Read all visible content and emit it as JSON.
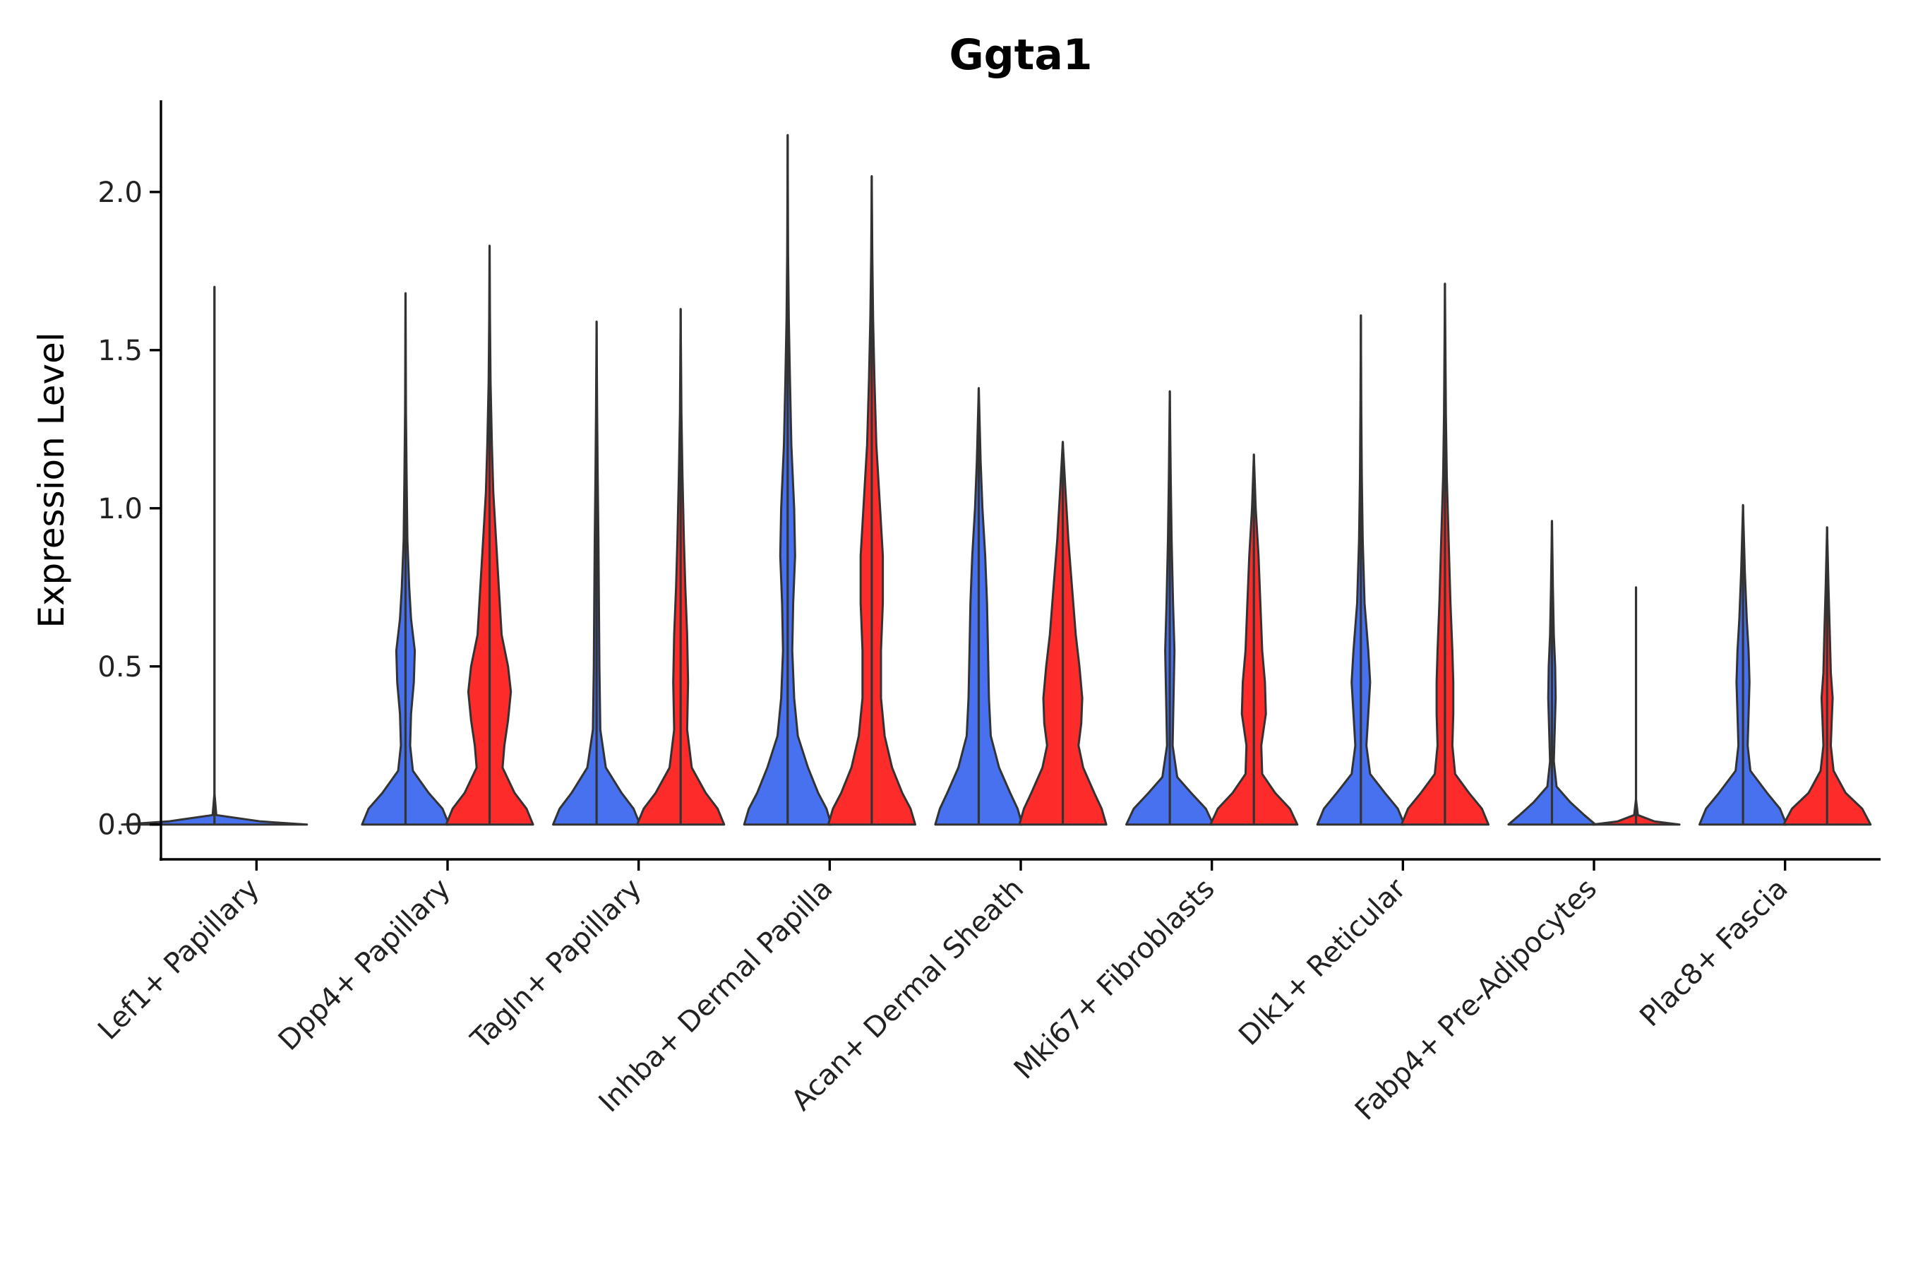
{
  "chart_data": {
    "type": "violin",
    "title": "Ggta1",
    "xlabel": "",
    "ylabel": "Expression Level",
    "ylim": [
      -0.11,
      2.29
    ],
    "yticks": [
      {
        "value": 0.0,
        "label": "0.0"
      },
      {
        "value": 0.5,
        "label": "0.5"
      },
      {
        "value": 1.0,
        "label": "1.0"
      },
      {
        "value": 1.5,
        "label": "1.5"
      },
      {
        "value": 2.0,
        "label": "2.0"
      }
    ],
    "colors": {
      "group_1": "#4771ee",
      "group_2": "#fe2b2b",
      "outline": "#333333"
    },
    "categories": [
      "Lef1+ Papillary",
      "Dpp4+ Papillary",
      "Tagln+ Papillary",
      "Inhba+ Dermal Papilla",
      "Acan+ Dermal Sheath",
      "Mki67+ Fibroblasts",
      "Dlk1+ Reticular",
      "Fabp4+ Pre-Adipocytes",
      "Plac8+ Fascia"
    ],
    "violins": [
      {
        "category": "Lef1+ Papillary",
        "group": 1,
        "max": 1.7,
        "density": [
          [
            0,
            1.0
          ],
          [
            0.01,
            0.5
          ],
          [
            0.03,
            0.02
          ],
          [
            0.1,
            0.0
          ],
          [
            1.7,
            0.0
          ]
        ]
      },
      {
        "category": "Dpp4+ Papillary",
        "group": 1,
        "max": 1.68,
        "density": [
          [
            0,
            0.47
          ],
          [
            0.05,
            0.4
          ],
          [
            0.1,
            0.25
          ],
          [
            0.17,
            0.08
          ],
          [
            0.25,
            0.05
          ],
          [
            0.35,
            0.06
          ],
          [
            0.45,
            0.09
          ],
          [
            0.55,
            0.1
          ],
          [
            0.65,
            0.06
          ],
          [
            0.75,
            0.04
          ],
          [
            0.9,
            0.02
          ],
          [
            1.1,
            0.012
          ],
          [
            1.3,
            0.005
          ],
          [
            1.68,
            0.0
          ]
        ]
      },
      {
        "category": "Dpp4+ Papillary",
        "group": 2,
        "max": 1.83,
        "density": [
          [
            0,
            0.47
          ],
          [
            0.05,
            0.4
          ],
          [
            0.1,
            0.27
          ],
          [
            0.18,
            0.14
          ],
          [
            0.25,
            0.16
          ],
          [
            0.33,
            0.2
          ],
          [
            0.42,
            0.23
          ],
          [
            0.5,
            0.2
          ],
          [
            0.6,
            0.13
          ],
          [
            0.75,
            0.1
          ],
          [
            0.9,
            0.07
          ],
          [
            1.05,
            0.04
          ],
          [
            1.2,
            0.025
          ],
          [
            1.4,
            0.01
          ],
          [
            1.6,
            0.004
          ],
          [
            1.83,
            0.0
          ]
        ]
      },
      {
        "category": "Tagln+ Papillary",
        "group": 1,
        "max": 1.59,
        "density": [
          [
            0,
            0.47
          ],
          [
            0.05,
            0.4
          ],
          [
            0.1,
            0.27
          ],
          [
            0.18,
            0.1
          ],
          [
            0.3,
            0.04
          ],
          [
            0.5,
            0.03
          ],
          [
            0.7,
            0.025
          ],
          [
            0.9,
            0.02
          ],
          [
            1.1,
            0.012
          ],
          [
            1.3,
            0.006
          ],
          [
            1.59,
            0.0
          ]
        ]
      },
      {
        "category": "Tagln+ Papillary",
        "group": 2,
        "max": 1.63,
        "density": [
          [
            0,
            0.47
          ],
          [
            0.05,
            0.4
          ],
          [
            0.1,
            0.27
          ],
          [
            0.18,
            0.12
          ],
          [
            0.3,
            0.07
          ],
          [
            0.45,
            0.08
          ],
          [
            0.6,
            0.07
          ],
          [
            0.75,
            0.05
          ],
          [
            0.9,
            0.035
          ],
          [
            1.1,
            0.02
          ],
          [
            1.3,
            0.008
          ],
          [
            1.63,
            0.0
          ]
        ]
      },
      {
        "category": "Inhba+ Dermal Papilla",
        "group": 1,
        "max": 2.18,
        "density": [
          [
            0,
            0.47
          ],
          [
            0.05,
            0.42
          ],
          [
            0.1,
            0.33
          ],
          [
            0.18,
            0.22
          ],
          [
            0.28,
            0.11
          ],
          [
            0.4,
            0.07
          ],
          [
            0.55,
            0.05
          ],
          [
            0.7,
            0.06
          ],
          [
            0.85,
            0.08
          ],
          [
            1.0,
            0.07
          ],
          [
            1.2,
            0.04
          ],
          [
            1.4,
            0.025
          ],
          [
            1.6,
            0.012
          ],
          [
            1.8,
            0.005
          ],
          [
            2.18,
            0.0
          ]
        ]
      },
      {
        "category": "Inhba+ Dermal Papilla",
        "group": 2,
        "max": 2.05,
        "density": [
          [
            0,
            0.47
          ],
          [
            0.05,
            0.42
          ],
          [
            0.1,
            0.33
          ],
          [
            0.18,
            0.22
          ],
          [
            0.28,
            0.14
          ],
          [
            0.4,
            0.1
          ],
          [
            0.55,
            0.1
          ],
          [
            0.7,
            0.12
          ],
          [
            0.85,
            0.12
          ],
          [
            1.0,
            0.09
          ],
          [
            1.2,
            0.05
          ],
          [
            1.4,
            0.03
          ],
          [
            1.6,
            0.015
          ],
          [
            1.8,
            0.006
          ],
          [
            2.05,
            0.0
          ]
        ]
      },
      {
        "category": "Acan+ Dermal Sheath",
        "group": 1,
        "max": 1.38,
        "density": [
          [
            0,
            0.47
          ],
          [
            0.05,
            0.42
          ],
          [
            0.1,
            0.34
          ],
          [
            0.18,
            0.22
          ],
          [
            0.28,
            0.13
          ],
          [
            0.4,
            0.11
          ],
          [
            0.55,
            0.1
          ],
          [
            0.7,
            0.09
          ],
          [
            0.85,
            0.07
          ],
          [
            1.0,
            0.04
          ],
          [
            1.15,
            0.02
          ],
          [
            1.38,
            0.0
          ]
        ]
      },
      {
        "category": "Acan+ Dermal Sheath",
        "group": 2,
        "max": 1.21,
        "density": [
          [
            0,
            0.47
          ],
          [
            0.05,
            0.42
          ],
          [
            0.1,
            0.34
          ],
          [
            0.18,
            0.22
          ],
          [
            0.25,
            0.17
          ],
          [
            0.32,
            0.2
          ],
          [
            0.4,
            0.21
          ],
          [
            0.5,
            0.18
          ],
          [
            0.6,
            0.14
          ],
          [
            0.75,
            0.1
          ],
          [
            0.9,
            0.06
          ],
          [
            1.05,
            0.03
          ],
          [
            1.21,
            0.0
          ]
        ]
      },
      {
        "category": "Mki67+ Fibroblasts",
        "group": 1,
        "max": 1.37,
        "density": [
          [
            0,
            0.47
          ],
          [
            0.05,
            0.39
          ],
          [
            0.1,
            0.23
          ],
          [
            0.15,
            0.08
          ],
          [
            0.25,
            0.03
          ],
          [
            0.4,
            0.04
          ],
          [
            0.55,
            0.05
          ],
          [
            0.7,
            0.035
          ],
          [
            0.9,
            0.02
          ],
          [
            1.1,
            0.01
          ],
          [
            1.37,
            0.0
          ]
        ]
      },
      {
        "category": "Mki67+ Fibroblasts",
        "group": 2,
        "max": 1.17,
        "density": [
          [
            0,
            0.47
          ],
          [
            0.05,
            0.39
          ],
          [
            0.1,
            0.23
          ],
          [
            0.16,
            0.09
          ],
          [
            0.25,
            0.08
          ],
          [
            0.35,
            0.13
          ],
          [
            0.45,
            0.12
          ],
          [
            0.55,
            0.09
          ],
          [
            0.7,
            0.07
          ],
          [
            0.85,
            0.05
          ],
          [
            1.0,
            0.02
          ],
          [
            1.17,
            0.0
          ]
        ]
      },
      {
        "category": "Dlk1+ Reticular",
        "group": 1,
        "max": 1.61,
        "density": [
          [
            0,
            0.47
          ],
          [
            0.05,
            0.4
          ],
          [
            0.1,
            0.26
          ],
          [
            0.16,
            0.1
          ],
          [
            0.25,
            0.06
          ],
          [
            0.35,
            0.08
          ],
          [
            0.45,
            0.1
          ],
          [
            0.55,
            0.08
          ],
          [
            0.7,
            0.04
          ],
          [
            0.9,
            0.02
          ],
          [
            1.1,
            0.01
          ],
          [
            1.3,
            0.005
          ],
          [
            1.61,
            0.0
          ]
        ]
      },
      {
        "category": "Dlk1+ Reticular",
        "group": 2,
        "max": 1.71,
        "density": [
          [
            0,
            0.47
          ],
          [
            0.05,
            0.4
          ],
          [
            0.1,
            0.26
          ],
          [
            0.16,
            0.11
          ],
          [
            0.25,
            0.08
          ],
          [
            0.35,
            0.09
          ],
          [
            0.45,
            0.09
          ],
          [
            0.55,
            0.08
          ],
          [
            0.7,
            0.06
          ],
          [
            0.9,
            0.04
          ],
          [
            1.1,
            0.02
          ],
          [
            1.3,
            0.01
          ],
          [
            1.71,
            0.0
          ]
        ]
      },
      {
        "category": "Fabp4+ Pre-Adipocytes",
        "group": 1,
        "max": 0.96,
        "density": [
          [
            0,
            0.47
          ],
          [
            0.03,
            0.35
          ],
          [
            0.07,
            0.2
          ],
          [
            0.12,
            0.05
          ],
          [
            0.2,
            0.02
          ],
          [
            0.3,
            0.03
          ],
          [
            0.4,
            0.04
          ],
          [
            0.5,
            0.035
          ],
          [
            0.6,
            0.02
          ],
          [
            0.75,
            0.01
          ],
          [
            0.96,
            0.0
          ]
        ]
      },
      {
        "category": "Fabp4+ Pre-Adipocytes",
        "group": 2,
        "max": 0.75,
        "density": [
          [
            0,
            0.47
          ],
          [
            0.01,
            0.2
          ],
          [
            0.03,
            0.02
          ],
          [
            0.08,
            0.0
          ],
          [
            0.75,
            0.0
          ]
        ]
      },
      {
        "category": "Plac8+ Fascia",
        "group": 1,
        "max": 1.01,
        "density": [
          [
            0,
            0.47
          ],
          [
            0.05,
            0.4
          ],
          [
            0.1,
            0.26
          ],
          [
            0.17,
            0.08
          ],
          [
            0.25,
            0.05
          ],
          [
            0.35,
            0.06
          ],
          [
            0.45,
            0.07
          ],
          [
            0.55,
            0.06
          ],
          [
            0.65,
            0.04
          ],
          [
            0.8,
            0.02
          ],
          [
            1.01,
            0.0
          ]
        ]
      },
      {
        "category": "Plac8+ Fascia",
        "group": 2,
        "max": 0.94,
        "density": [
          [
            0,
            0.47
          ],
          [
            0.05,
            0.38
          ],
          [
            0.1,
            0.2
          ],
          [
            0.17,
            0.07
          ],
          [
            0.25,
            0.04
          ],
          [
            0.33,
            0.05
          ],
          [
            0.4,
            0.06
          ],
          [
            0.48,
            0.04
          ],
          [
            0.6,
            0.03
          ],
          [
            0.75,
            0.015
          ],
          [
            0.94,
            0.0
          ]
        ]
      }
    ]
  }
}
